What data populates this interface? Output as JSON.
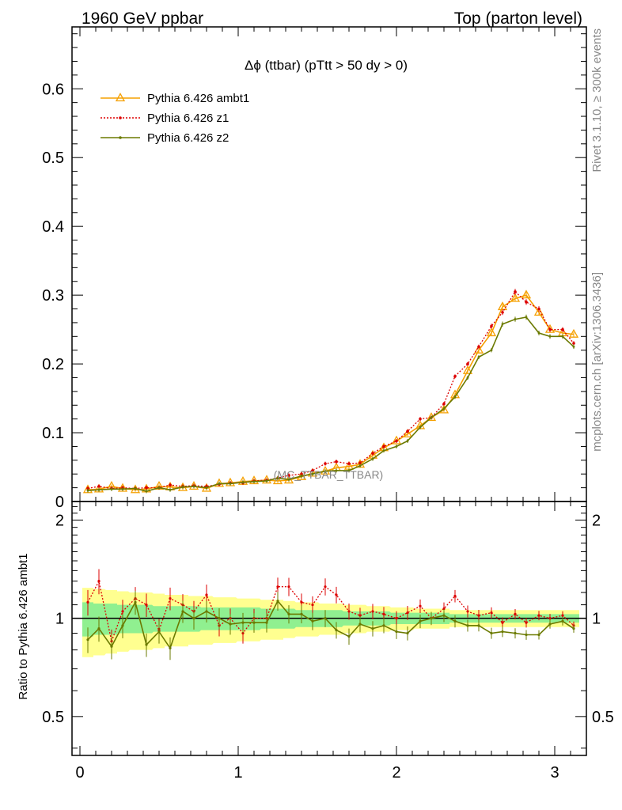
{
  "header": {
    "left": "1960 GeV ppbar",
    "right": "Top (parton level)"
  },
  "side_text": {
    "upper": "Rivet 3.1.10, ≥ 300k events",
    "lower": "mcplots.cern.ch [arXiv:1306.3436]"
  },
  "chart_data": [
    {
      "type": "line",
      "title": "Δϕ (ttbar) (pTtt > 50 dy > 0)",
      "watermark": "(MC_TTBAR_TTBAR)",
      "xlim": [
        -0.05,
        3.2
      ],
      "ylim": [
        0,
        0.69
      ],
      "yticks": [
        0,
        0.1,
        0.2,
        0.3,
        0.4,
        0.5,
        0.6
      ],
      "ytick_labels": [
        "0",
        "0.1",
        "0.2",
        "0.3",
        "0.4",
        "0.5",
        "0.6"
      ],
      "legend_position": "top-left",
      "x": [
        0.05,
        0.12,
        0.2,
        0.27,
        0.35,
        0.42,
        0.5,
        0.57,
        0.65,
        0.72,
        0.8,
        0.88,
        0.95,
        1.03,
        1.1,
        1.18,
        1.25,
        1.32,
        1.4,
        1.47,
        1.55,
        1.62,
        1.7,
        1.77,
        1.85,
        1.92,
        2.0,
        2.07,
        2.15,
        2.22,
        2.3,
        2.37,
        2.45,
        2.52,
        2.6,
        2.67,
        2.75,
        2.82,
        2.9,
        2.97,
        3.05,
        3.12
      ],
      "series": [
        {
          "name": "Pythia 6.426 ambt1",
          "color": "#f5a000",
          "marker": "triangle",
          "dash": "solid",
          "values": [
            0.017,
            0.018,
            0.022,
            0.019,
            0.017,
            0.018,
            0.022,
            0.021,
            0.02,
            0.022,
            0.019,
            0.026,
            0.027,
            0.029,
            0.03,
            0.031,
            0.03,
            0.031,
            0.036,
            0.041,
            0.044,
            0.049,
            0.051,
            0.054,
            0.067,
            0.078,
            0.088,
            0.098,
            0.11,
            0.122,
            0.133,
            0.155,
            0.19,
            0.22,
            0.245,
            0.283,
            0.295,
            0.3,
            0.275,
            0.25,
            0.245,
            0.243
          ]
        },
        {
          "name": "Pythia 6.426 z1",
          "color": "#dd0000",
          "marker": "dot",
          "dash": "dotted",
          "values": [
            0.019,
            0.022,
            0.019,
            0.02,
            0.019,
            0.02,
            0.02,
            0.024,
            0.022,
            0.023,
            0.022,
            0.025,
            0.027,
            0.027,
            0.03,
            0.031,
            0.034,
            0.038,
            0.04,
            0.045,
            0.055,
            0.058,
            0.055,
            0.056,
            0.07,
            0.08,
            0.088,
            0.102,
            0.12,
            0.122,
            0.142,
            0.182,
            0.2,
            0.225,
            0.255,
            0.275,
            0.305,
            0.29,
            0.28,
            0.25,
            0.25,
            0.23
          ]
        },
        {
          "name": "Pythia 6.426 z2",
          "color": "#6b7a00",
          "marker": "small-dot",
          "dash": "solid",
          "values": [
            0.016,
            0.017,
            0.018,
            0.018,
            0.019,
            0.015,
            0.02,
            0.017,
            0.021,
            0.022,
            0.02,
            0.026,
            0.026,
            0.028,
            0.029,
            0.03,
            0.034,
            0.032,
            0.037,
            0.04,
            0.044,
            0.045,
            0.045,
            0.052,
            0.062,
            0.074,
            0.08,
            0.088,
            0.108,
            0.122,
            0.135,
            0.152,
            0.18,
            0.21,
            0.22,
            0.258,
            0.265,
            0.268,
            0.245,
            0.24,
            0.24,
            0.225
          ]
        }
      ]
    },
    {
      "type": "line",
      "ylabel": "Ratio to Pythia 6.426 ambt1",
      "xlim": [
        -0.05,
        3.2
      ],
      "ylim": [
        0.38,
        2.28
      ],
      "yticks": [
        0.5,
        1,
        2
      ],
      "ytick_labels": [
        "0.5",
        "1",
        "2"
      ],
      "xticks": [
        0,
        1,
        2,
        3
      ],
      "xtick_labels": [
        "0",
        "1",
        "2",
        "3"
      ],
      "band_inner": [
        0.12,
        0.11,
        0.11,
        0.1,
        0.1,
        0.1,
        0.09,
        0.09,
        0.09,
        0.09,
        0.08,
        0.08,
        0.08,
        0.08,
        0.08,
        0.07,
        0.07,
        0.07,
        0.06,
        0.06,
        0.06,
        0.06,
        0.05,
        0.05,
        0.05,
        0.05,
        0.04,
        0.04,
        0.04,
        0.04,
        0.04,
        0.03,
        0.03,
        0.03,
        0.03,
        0.03,
        0.03,
        0.03,
        0.03,
        0.03,
        0.03,
        0.03
      ],
      "band_outer": [
        0.24,
        0.23,
        0.22,
        0.21,
        0.2,
        0.2,
        0.19,
        0.18,
        0.18,
        0.17,
        0.17,
        0.16,
        0.16,
        0.15,
        0.15,
        0.14,
        0.14,
        0.13,
        0.12,
        0.12,
        0.11,
        0.11,
        0.1,
        0.1,
        0.09,
        0.09,
        0.08,
        0.08,
        0.07,
        0.07,
        0.07,
        0.06,
        0.06,
        0.06,
        0.06,
        0.06,
        0.06,
        0.06,
        0.06,
        0.06,
        0.06,
        0.06
      ],
      "band_inner_color": "#90f090",
      "band_outer_color": "#ffff90",
      "series": [
        {
          "name": "Pythia 6.426 z1",
          "color": "#dd0000",
          "dash": "dotted",
          "values": [
            1.12,
            1.3,
            0.85,
            1.05,
            1.15,
            1.1,
            0.92,
            1.15,
            1.1,
            1.05,
            1.18,
            0.95,
            1.0,
            0.9,
            1.0,
            1.0,
            1.25,
            1.25,
            1.12,
            1.1,
            1.25,
            1.18,
            1.05,
            1.02,
            1.05,
            1.03,
            1.0,
            1.04,
            1.09,
            1.0,
            1.07,
            1.17,
            1.05,
            1.02,
            1.04,
            0.97,
            1.03,
            0.97,
            1.02,
            1.0,
            1.02,
            0.95
          ]
        },
        {
          "name": "Pythia 6.426 z2",
          "color": "#6b7a00",
          "dash": "solid",
          "values": [
            0.86,
            0.93,
            0.82,
            0.95,
            1.12,
            0.83,
            0.91,
            0.81,
            1.05,
            1.0,
            1.05,
            1.0,
            0.96,
            0.97,
            0.97,
            0.97,
            1.13,
            1.03,
            1.03,
            0.98,
            1.0,
            0.92,
            0.88,
            0.96,
            0.93,
            0.95,
            0.91,
            0.9,
            0.98,
            1.0,
            1.02,
            0.98,
            0.95,
            0.95,
            0.9,
            0.91,
            0.9,
            0.89,
            0.89,
            0.96,
            0.98,
            0.93
          ]
        }
      ]
    }
  ]
}
